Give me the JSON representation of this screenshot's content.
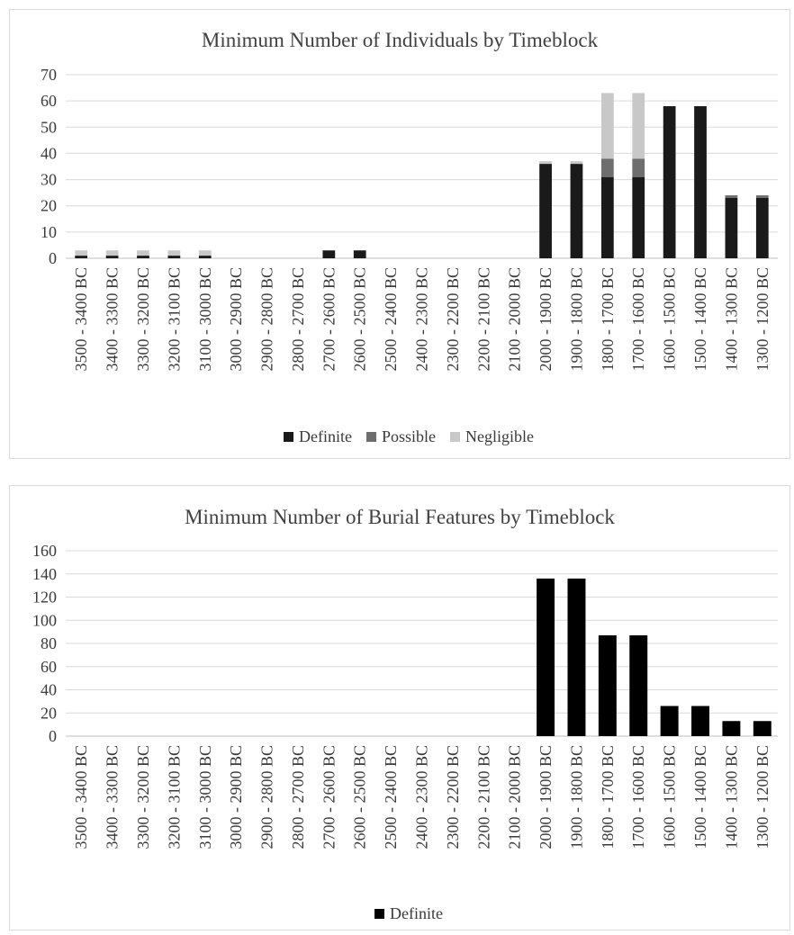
{
  "chart_data": [
    {
      "type": "bar",
      "stacked": true,
      "title": "Minimum Number of Individuals by Timeblock",
      "categories": [
        "3500 - 3400 BC",
        "3400 - 3300 BC",
        "3300 - 3200 BC",
        "3200 - 3100 BC",
        "3100 - 3000 BC",
        "3000 - 2900 BC",
        "2900 - 2800 BC",
        "2800 - 2700 BC",
        "2700 - 2600 BC",
        "2600 - 2500 BC",
        "2500 - 2400 BC",
        "2400 - 2300 BC",
        "2300 - 2200 BC",
        "2200 - 2100 BC",
        "2100 - 2000 BC",
        "2000 - 1900 BC",
        "1900 - 1800 BC",
        "1800 - 1700 BC",
        "1700 - 1600 BC",
        "1600 - 1500 BC",
        "1500 - 1400 BC",
        "1400 - 1300 BC",
        "1300 - 1200 BC"
      ],
      "series": [
        {
          "name": "Definite",
          "color": "#1a1a1a",
          "values": [
            1,
            1,
            1,
            1,
            1,
            0,
            0,
            0,
            3,
            3,
            0,
            0,
            0,
            0,
            0,
            36,
            36,
            31,
            31,
            58,
            58,
            23,
            23
          ]
        },
        {
          "name": "Possible",
          "color": "#6e6e6e",
          "values": [
            0,
            0,
            0,
            0,
            0,
            0,
            0,
            0,
            0,
            0,
            0,
            0,
            0,
            0,
            0,
            0,
            0,
            7,
            7,
            0,
            0,
            1,
            1
          ]
        },
        {
          "name": "Negligible",
          "color": "#c8c8c8",
          "values": [
            2,
            2,
            2,
            2,
            2,
            0,
            0,
            0,
            0,
            0,
            0,
            0,
            0,
            0,
            0,
            1,
            1,
            25,
            25,
            0,
            0,
            0,
            0
          ]
        }
      ],
      "yticks": [
        0,
        10,
        20,
        30,
        40,
        50,
        60,
        70
      ],
      "ylim": [
        0,
        70
      ],
      "grid": true,
      "legend": "bottom"
    },
    {
      "type": "bar",
      "title": "Minimum Number of Burial Features by Timeblock",
      "categories": [
        "3500 - 3400 BC",
        "3400 - 3300 BC",
        "3300 - 3200 BC",
        "3200 - 3100 BC",
        "3100 - 3000 BC",
        "3000 - 2900 BC",
        "2900 - 2800 BC",
        "2800 - 2700 BC",
        "2700 - 2600 BC",
        "2600 - 2500 BC",
        "2500 - 2400 BC",
        "2400 - 2300 BC",
        "2300 - 2200 BC",
        "2200 - 2100 BC",
        "2100 - 2000 BC",
        "2000 - 1900 BC",
        "1900 - 1800 BC",
        "1800 - 1700 BC",
        "1700 - 1600 BC",
        "1600 - 1500 BC",
        "1500 - 1400 BC",
        "1400 - 1300 BC",
        "1300 - 1200 BC"
      ],
      "series": [
        {
          "name": "Definite",
          "color": "#000000",
          "values": [
            0,
            0,
            0,
            0,
            0,
            0,
            0,
            0,
            0,
            0,
            0,
            0,
            0,
            0,
            0,
            136,
            136,
            87,
            87,
            26,
            26,
            13,
            13
          ]
        }
      ],
      "yticks": [
        0,
        20,
        40,
        60,
        80,
        100,
        120,
        140,
        160
      ],
      "ylim": [
        0,
        160
      ],
      "grid": true,
      "legend": "bottom"
    }
  ]
}
